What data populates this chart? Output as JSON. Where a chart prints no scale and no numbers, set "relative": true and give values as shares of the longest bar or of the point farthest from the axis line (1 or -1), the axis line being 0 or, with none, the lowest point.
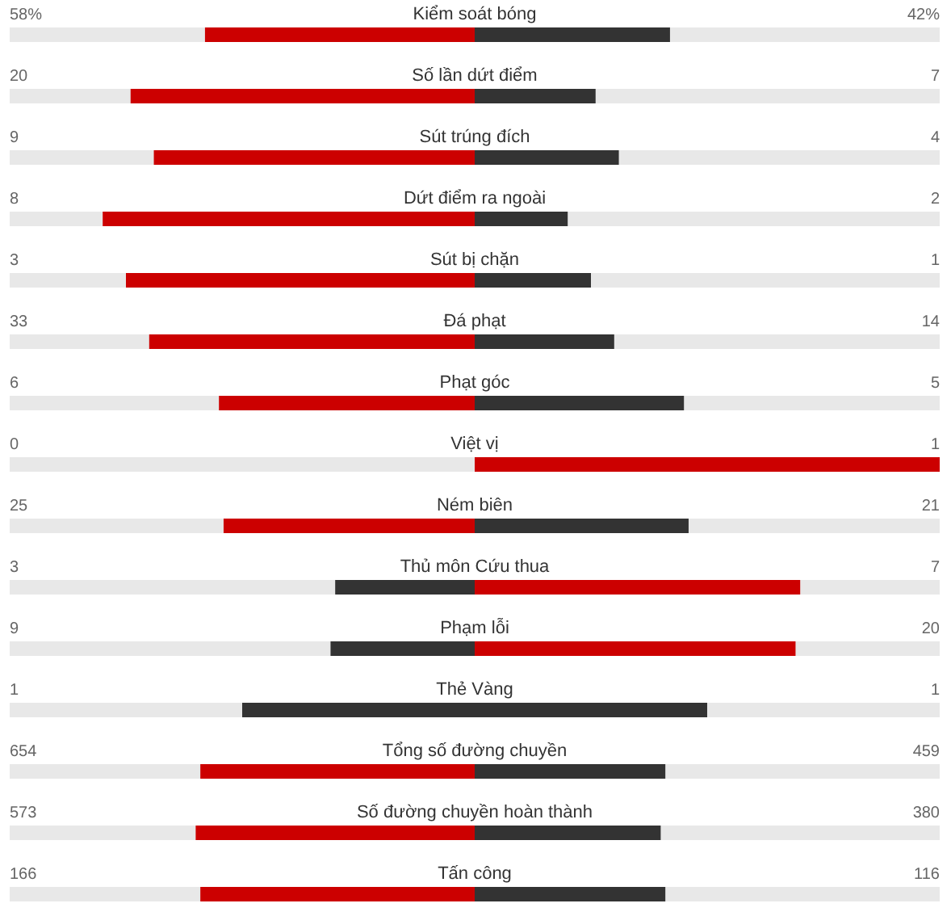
{
  "chart_data": {
    "type": "bar",
    "orientation": "horizontal",
    "stacked": true,
    "relative": true,
    "categories": [
      "Kiểm soát bóng",
      "Số lần dứt điểm",
      "Sút trúng đích",
      "Dứt điểm ra ngoài",
      "Sút bị chặn",
      "Đá phạt",
      "Phạt góc",
      "Việt vị",
      "Ném biên",
      "Thủ môn Cứu thua",
      "Phạm lỗi",
      "Thẻ Vàng",
      "Tổng số đường chuyền",
      "Số đường chuyền hoàn thành",
      "Tấn công"
    ],
    "series": [
      {
        "values": [
          -0.58,
          -0.74,
          -0.69,
          -0.8,
          -0.75,
          -0.7,
          -0.55,
          0,
          -0.54,
          -0.3,
          -0.31,
          -0.5,
          -0.59,
          -0.6,
          -0.59
        ],
        "colors": [
          "#cc0000",
          "#cc0000",
          "#cc0000",
          "#cc0000",
          "#cc0000",
          "#cc0000",
          "#cc0000",
          "#333333",
          "#cc0000",
          "#333333",
          "#333333",
          "#333333",
          "#cc0000",
          "#cc0000",
          "#cc0000"
        ]
      },
      {
        "values": [
          0.42,
          0.26,
          0.31,
          0.2,
          0.25,
          0.3,
          0.45,
          1,
          0.46,
          0.7,
          0.69,
          0.5,
          0.41,
          0.4,
          0.41
        ],
        "colors": [
          "#333333",
          "#333333",
          "#333333",
          "#333333",
          "#333333",
          "#333333",
          "#333333",
          "#cc0000",
          "#333333",
          "#cc0000",
          "#cc0000",
          "#333333",
          "#333333",
          "#333333",
          "#333333"
        ]
      }
    ],
    "annotations": [
      "58%",
      "42%",
      "20",
      "7",
      "9",
      "4",
      "8",
      "2",
      "3",
      "1",
      "33",
      "14",
      "6",
      "5",
      "0",
      "1",
      "25",
      "21",
      "3",
      "7",
      "9",
      "20",
      "1",
      "1",
      "654",
      "459",
      "573",
      "380",
      "166",
      "116"
    ]
  }
}
